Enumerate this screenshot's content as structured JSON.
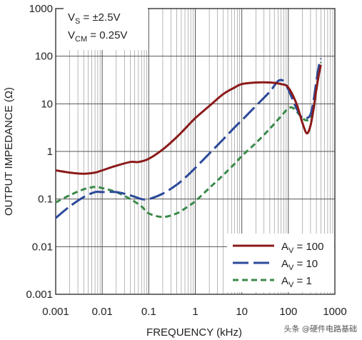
{
  "chart_data": {
    "type": "line",
    "title": "",
    "xlabel": "FREQUENCY (kHz)",
    "ylabel": "OUTPUT IMPEDANCE (Ω)",
    "x_scale": "log",
    "y_scale": "log",
    "xlim": [
      0.001,
      1000
    ],
    "ylim": [
      0.001,
      1000
    ],
    "grid": true,
    "x_ticks": [
      "0.001",
      "0.01",
      "0.1",
      "1",
      "10",
      "100",
      "1000"
    ],
    "y_ticks": [
      "1000",
      "100",
      "10",
      "1",
      "0.1",
      "0.01",
      "0.001"
    ],
    "conditions": {
      "line1_main": "V",
      "line1_sub": "S",
      "line1_rest": " = ±2.5V",
      "line2_main": "V",
      "line2_sub": "CM",
      "line2_rest": " = 0.25V"
    },
    "legend_position": "bottom-right",
    "series": [
      {
        "legend_main": "A",
        "legend_sub": "V",
        "legend_rest": " = 100",
        "color": "#8b1a1a",
        "dash": "solid",
        "points": [
          [
            0.001,
            0.4
          ],
          [
            0.002,
            0.36
          ],
          [
            0.004,
            0.34
          ],
          [
            0.007,
            0.36
          ],
          [
            0.01,
            0.4
          ],
          [
            0.02,
            0.5
          ],
          [
            0.04,
            0.6
          ],
          [
            0.06,
            0.6
          ],
          [
            0.1,
            0.7
          ],
          [
            0.2,
            1.1
          ],
          [
            0.4,
            2.0
          ],
          [
            0.7,
            3.5
          ],
          [
            1,
            5
          ],
          [
            2,
            9
          ],
          [
            4,
            16
          ],
          [
            7,
            22
          ],
          [
            10,
            26
          ],
          [
            20,
            28
          ],
          [
            40,
            28
          ],
          [
            70,
            26
          ],
          [
            100,
            22
          ],
          [
            150,
            10
          ],
          [
            200,
            4
          ],
          [
            250,
            2.4
          ],
          [
            300,
            3.5
          ],
          [
            350,
            8
          ],
          [
            400,
            20
          ],
          [
            450,
            40
          ],
          [
            500,
            65
          ]
        ]
      },
      {
        "legend_main": "A",
        "legend_sub": "V",
        "legend_rest": " = 10",
        "color": "#2c4a9a",
        "dash": "long",
        "points": [
          [
            0.001,
            0.04
          ],
          [
            0.002,
            0.07
          ],
          [
            0.004,
            0.11
          ],
          [
            0.007,
            0.14
          ],
          [
            0.01,
            0.14
          ],
          [
            0.02,
            0.14
          ],
          [
            0.04,
            0.12
          ],
          [
            0.07,
            0.1
          ],
          [
            0.1,
            0.1
          ],
          [
            0.2,
            0.13
          ],
          [
            0.4,
            0.2
          ],
          [
            0.7,
            0.32
          ],
          [
            1,
            0.45
          ],
          [
            2,
            0.9
          ],
          [
            4,
            1.8
          ],
          [
            7,
            3.2
          ],
          [
            10,
            4.5
          ],
          [
            20,
            9
          ],
          [
            40,
            18
          ],
          [
            60,
            30
          ],
          [
            80,
            30
          ],
          [
            100,
            20
          ],
          [
            150,
            8
          ],
          [
            200,
            5
          ],
          [
            250,
            5
          ],
          [
            300,
            6
          ],
          [
            350,
            12
          ],
          [
            400,
            30
          ],
          [
            450,
            60
          ],
          [
            500,
            90
          ]
        ]
      },
      {
        "legend_main": "A",
        "legend_sub": "V",
        "legend_rest": " = 1",
        "color": "#3a8a4a",
        "dash": "short",
        "points": [
          [
            0.001,
            0.085
          ],
          [
            0.002,
            0.12
          ],
          [
            0.004,
            0.16
          ],
          [
            0.007,
            0.18
          ],
          [
            0.01,
            0.17
          ],
          [
            0.02,
            0.14
          ],
          [
            0.04,
            0.1
          ],
          [
            0.07,
            0.07
          ],
          [
            0.1,
            0.05
          ],
          [
            0.2,
            0.042
          ],
          [
            0.4,
            0.05
          ],
          [
            0.7,
            0.07
          ],
          [
            1,
            0.09
          ],
          [
            2,
            0.17
          ],
          [
            4,
            0.32
          ],
          [
            7,
            0.55
          ],
          [
            10,
            0.8
          ],
          [
            20,
            1.5
          ],
          [
            40,
            3
          ],
          [
            70,
            5.5
          ],
          [
            100,
            8
          ],
          [
            130,
            8
          ],
          [
            200,
            5
          ],
          [
            250,
            4.5
          ],
          [
            300,
            5
          ],
          [
            350,
            8
          ],
          [
            400,
            20
          ],
          [
            450,
            40
          ],
          [
            500,
            75
          ]
        ]
      }
    ]
  },
  "watermark": "头条 @硬件电路基础"
}
